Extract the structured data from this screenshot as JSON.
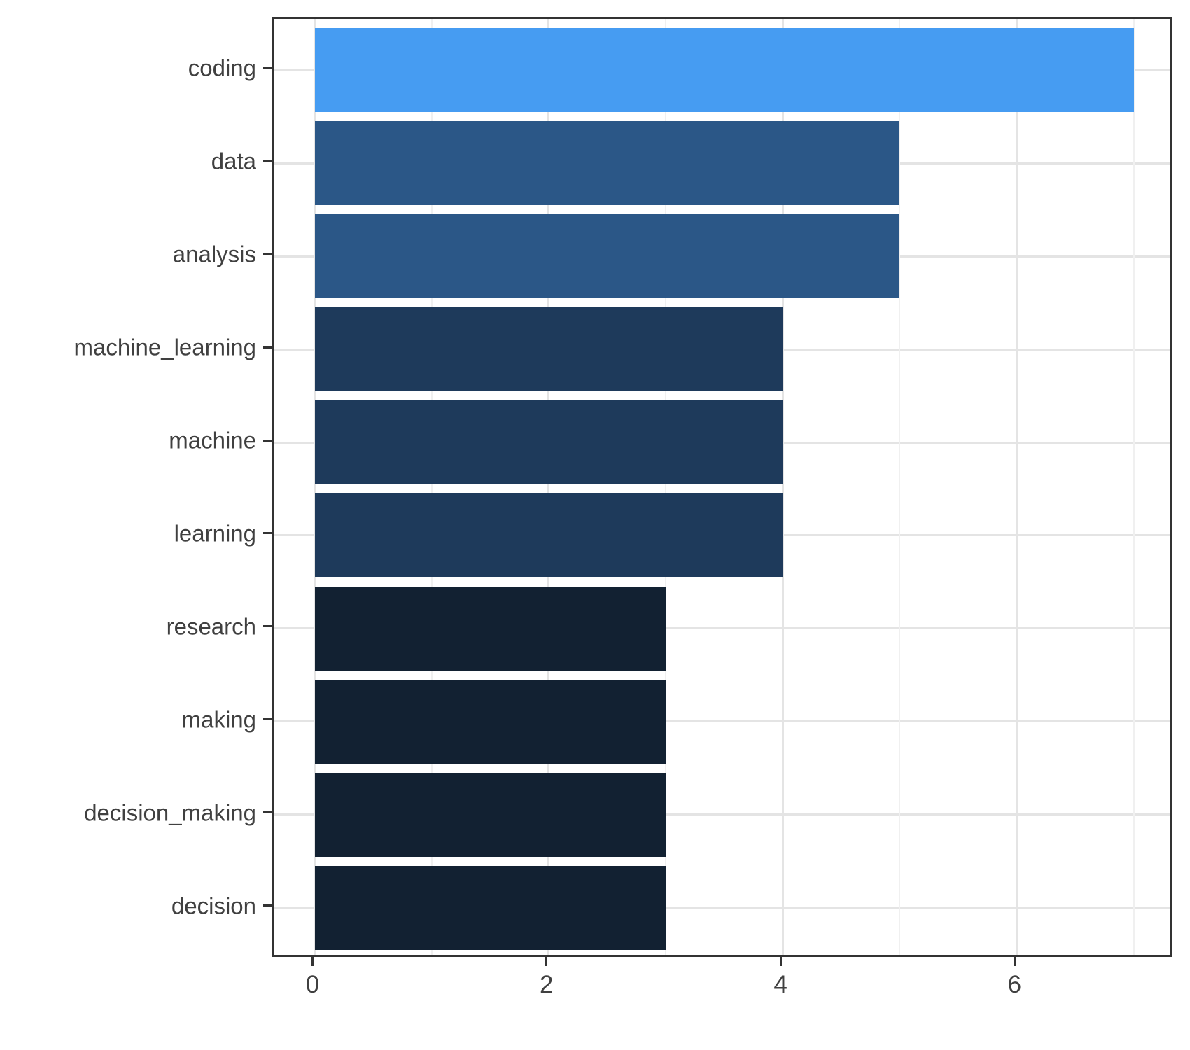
{
  "chart_data": {
    "type": "bar",
    "orientation": "horizontal",
    "title": "",
    "xlabel": "",
    "ylabel": "",
    "categories": [
      "coding",
      "data",
      "analysis",
      "machine_learning",
      "machine",
      "learning",
      "research",
      "making",
      "decision_making",
      "decision"
    ],
    "values": [
      7,
      5,
      5,
      4,
      4,
      4,
      3,
      3,
      3,
      3
    ],
    "bar_colors": [
      "#469CF2",
      "#2B5787",
      "#2B5787",
      "#1E3A5B",
      "#1E3A5B",
      "#1E3A5B",
      "#122132",
      "#122132",
      "#122132",
      "#122132"
    ],
    "xlim": [
      -0.35,
      7.35
    ],
    "x_major_ticks": [
      0,
      2,
      4,
      6
    ],
    "x_tick_labels": [
      "0",
      "2",
      "4",
      "6"
    ],
    "x_minor_gridlines": [
      1,
      3,
      5,
      7
    ],
    "grid": "major-vertical-and-minor-vertical-plus-major-horizontal",
    "legend": "none",
    "bar_gap_fraction": 0.1
  },
  "style": {
    "background": "#FFFFFF",
    "panel_border_color": "#333333",
    "major_grid_color": "#E4E4E4",
    "minor_grid_color": "#F0F0F0",
    "tick_color": "#333333",
    "text_color": "#404040"
  }
}
